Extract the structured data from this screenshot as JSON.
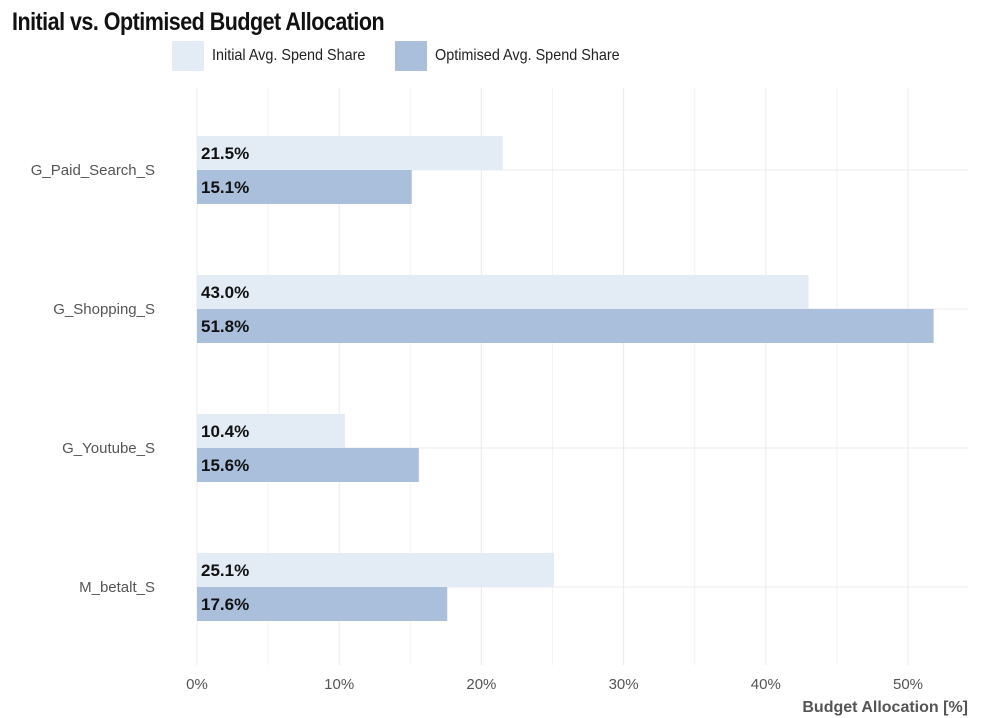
{
  "chart_data": {
    "type": "bar",
    "orientation": "horizontal",
    "title": "Initial vs. Optimised Budget Allocation",
    "xlabel": "Budget Allocation [%]",
    "ylabel": "",
    "categories": [
      "G_Paid_Search_S",
      "G_Shopping_S",
      "G_Youtube_S",
      "M_betalt_S"
    ],
    "series": [
      {
        "name": "Initial Avg. Spend Share",
        "color": "#e3ebf4",
        "values": [
          21.5,
          43.0,
          10.4,
          25.1
        ],
        "labels": [
          "21.5%",
          "43.0%",
          "10.4%",
          "25.1%"
        ]
      },
      {
        "name": "Optimised Avg. Spend Share",
        "color": "#a9bfdb",
        "values": [
          15.1,
          51.8,
          15.6,
          17.6
        ],
        "labels": [
          "15.1%",
          "51.8%",
          "15.6%",
          "17.6%"
        ]
      }
    ],
    "xlim": [
      0,
      54.5
    ],
    "xticks": [
      0,
      10,
      20,
      30,
      40,
      50
    ],
    "xtick_labels": [
      "0%",
      "10%",
      "20%",
      "30%",
      "40%",
      "50%"
    ],
    "legend_position": "top-left",
    "grid": true
  }
}
